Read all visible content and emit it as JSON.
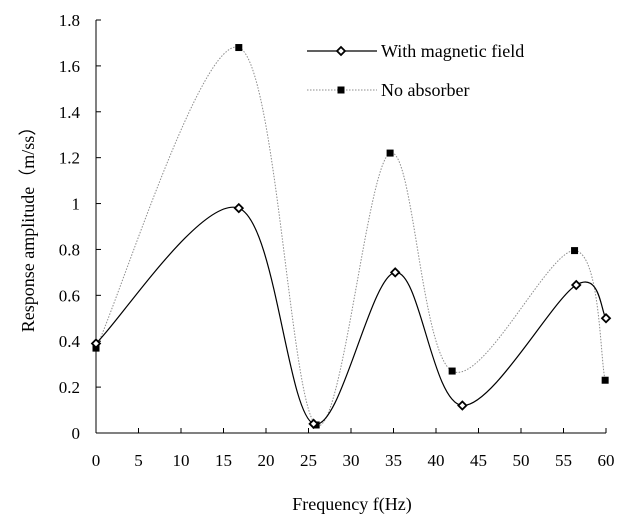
{
  "chart_data": {
    "type": "line",
    "xlabel": "Frequency f(Hz)",
    "ylabel": "Response amplitude（m/ss）",
    "xlim": [
      0,
      60
    ],
    "ylim": [
      0,
      1.8
    ],
    "x_ticks": [
      "0",
      "5",
      "10",
      "15",
      "20",
      "25",
      "30",
      "35",
      "40",
      "45",
      "50",
      "55",
      "60"
    ],
    "y_ticks": [
      "0",
      "0.2",
      "0.4",
      "0.6",
      "0.8",
      "1",
      "1.2",
      "1.4",
      "1.6",
      "1.8"
    ],
    "grid": false,
    "legend_position": "top-right",
    "series": [
      {
        "name": "With magnetic field",
        "marker": "open-diamond",
        "line_color": "#000000",
        "line_style": "solid",
        "x": [
          0,
          16.8,
          25.6,
          35.2,
          43.1,
          56.5,
          60
        ],
        "y": [
          0.39,
          0.98,
          0.04,
          0.7,
          0.12,
          0.645,
          0.5
        ]
      },
      {
        "name": "No absorber",
        "marker": "filled-square",
        "line_color": "#8c8c8c",
        "line_style": "dotted",
        "x": [
          0,
          16.8,
          25.9,
          34.6,
          41.9,
          56.3,
          59.9
        ],
        "y": [
          0.37,
          1.68,
          0.035,
          1.22,
          0.27,
          0.795,
          0.23
        ]
      }
    ]
  }
}
